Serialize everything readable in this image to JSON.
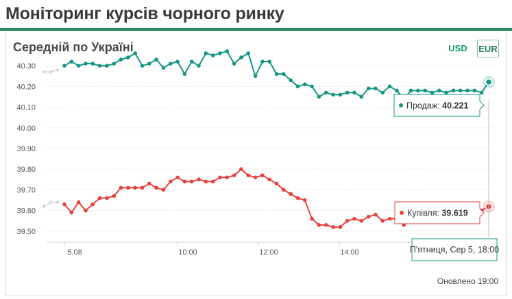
{
  "page": {
    "title": "Моніторинг курсів чорного ринку"
  },
  "card": {
    "title": "Середній по Україні",
    "currencies": [
      {
        "label": "USD",
        "active": false
      },
      {
        "label": "EUR",
        "active": true
      }
    ],
    "updated": "Оновлено 19:00"
  },
  "chart_data": {
    "type": "line",
    "title": "Середній по Україні",
    "x_ticks": [
      "5.08",
      "10:00",
      "12:00",
      "14:00"
    ],
    "y_ticks": [
      39.5,
      39.6,
      39.7,
      39.8,
      39.9,
      40.0,
      40.1,
      40.2,
      40.3
    ],
    "ylim": [
      39.45,
      40.33
    ],
    "grid": true,
    "colors": {
      "sell": "#139683",
      "buy": "#e8403c",
      "prev_day": "#d5d5d5"
    },
    "series": [
      {
        "name": "Продаж",
        "key": "sell",
        "prev_day": [
          40.27,
          40.27,
          40.28
        ],
        "values": [
          40.3,
          40.32,
          40.3,
          40.31,
          40.31,
          40.3,
          40.3,
          40.31,
          40.33,
          40.34,
          40.36,
          40.3,
          40.31,
          40.33,
          40.29,
          40.31,
          40.32,
          40.26,
          40.32,
          40.3,
          40.36,
          40.35,
          40.36,
          40.37,
          40.31,
          40.34,
          40.36,
          40.25,
          40.32,
          40.32,
          40.26,
          40.26,
          40.23,
          40.2,
          40.21,
          40.2,
          40.15,
          40.17,
          40.16,
          40.16,
          40.17,
          40.17,
          40.15,
          40.19,
          40.19,
          40.17,
          40.2,
          40.18,
          40.14,
          40.18,
          40.18,
          40.18,
          40.17,
          40.18,
          40.17,
          40.18,
          40.18,
          40.18,
          40.18,
          40.17,
          40.221
        ]
      },
      {
        "name": "Купівля",
        "key": "buy",
        "prev_day": [
          39.62,
          39.64,
          39.64
        ],
        "values": [
          39.63,
          39.59,
          39.64,
          39.6,
          39.63,
          39.66,
          39.66,
          39.67,
          39.71,
          39.71,
          39.71,
          39.71,
          39.73,
          39.71,
          39.7,
          39.74,
          39.76,
          39.74,
          39.74,
          39.75,
          39.74,
          39.74,
          39.76,
          39.76,
          39.77,
          39.8,
          39.77,
          39.76,
          39.77,
          39.75,
          39.73,
          39.7,
          39.68,
          39.66,
          39.65,
          39.56,
          39.53,
          39.53,
          39.52,
          39.52,
          39.55,
          39.56,
          39.55,
          39.57,
          39.58,
          39.55,
          39.56,
          39.56,
          39.53,
          39.56,
          39.58,
          39.58,
          39.57,
          39.58,
          39.58,
          39.59,
          39.59,
          39.59,
          39.59,
          39.6,
          39.619
        ]
      }
    ],
    "tooltips": {
      "sell": {
        "label": "Продаж:",
        "value": "40.221"
      },
      "buy": {
        "label": "Купівля:",
        "value": "39.619"
      },
      "time": "П'ятниця, Сер 5, 18:00"
    }
  }
}
